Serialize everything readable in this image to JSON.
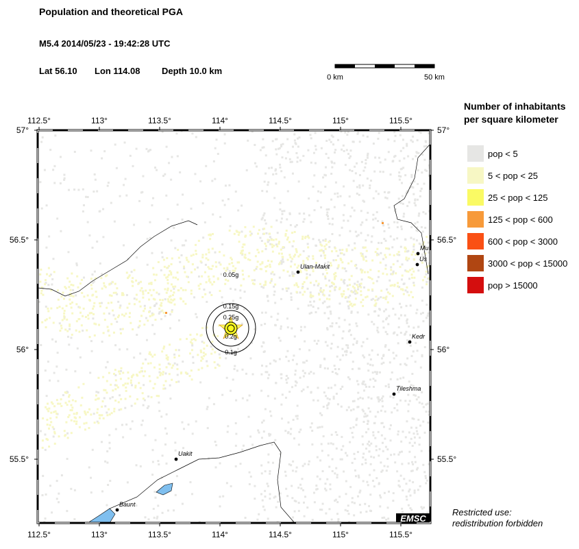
{
  "header": {
    "title": "Population and theoretical PGA",
    "event": "M5.4  2014/05/23 - 19:42:28 UTC",
    "lat": "Lat 56.10",
    "lon": "Lon 114.08",
    "depth": "Depth  10.0 km"
  },
  "scale": {
    "start": "0 km",
    "end": "50 km"
  },
  "map": {
    "lon_ticks": [
      {
        "value": 112.5,
        "label": "112.5°"
      },
      {
        "value": 113,
        "label": "113°"
      },
      {
        "value": 113.5,
        "label": "113.5°"
      },
      {
        "value": 114,
        "label": "114°"
      },
      {
        "value": 114.5,
        "label": "114.5°"
      },
      {
        "value": 115,
        "label": "115°"
      },
      {
        "value": 115.5,
        "label": "115.5°"
      }
    ],
    "lat_ticks": [
      {
        "value": 57,
        "label": "57°"
      },
      {
        "value": 56.5,
        "label": "56.5°"
      },
      {
        "value": 56,
        "label": "56°"
      },
      {
        "value": 55.5,
        "label": "55.5°"
      }
    ],
    "places": [
      "Ulan-Makit",
      "Uakit",
      "Baunt",
      "Tileshma",
      "Kedr",
      "Mu",
      "Us"
    ],
    "pga_labels": [
      "0.05g",
      "0.15g",
      "0.25g",
      "0.2g",
      "0.1g"
    ],
    "credit": "EMSC"
  },
  "legend": {
    "title": [
      "Number of inhabitants",
      "per square kilometer"
    ],
    "items": [
      {
        "label": "pop < 5",
        "color": "#e6e6e4"
      },
      {
        "label": "5 < pop < 25",
        "color": "#f7f7c4"
      },
      {
        "label": "25 < pop < 125",
        "color": "#fafa64"
      },
      {
        "label": "125 < pop < 600",
        "color": "#f79a3a"
      },
      {
        "label": "600 < pop < 3000",
        "color": "#fa5014"
      },
      {
        "label": "3000 < pop < 15000",
        "color": "#b04612"
      },
      {
        "label": "pop > 15000",
        "color": "#d40e0e"
      }
    ]
  },
  "notice": [
    "Restricted use:",
    "redistribution forbidden"
  ]
}
